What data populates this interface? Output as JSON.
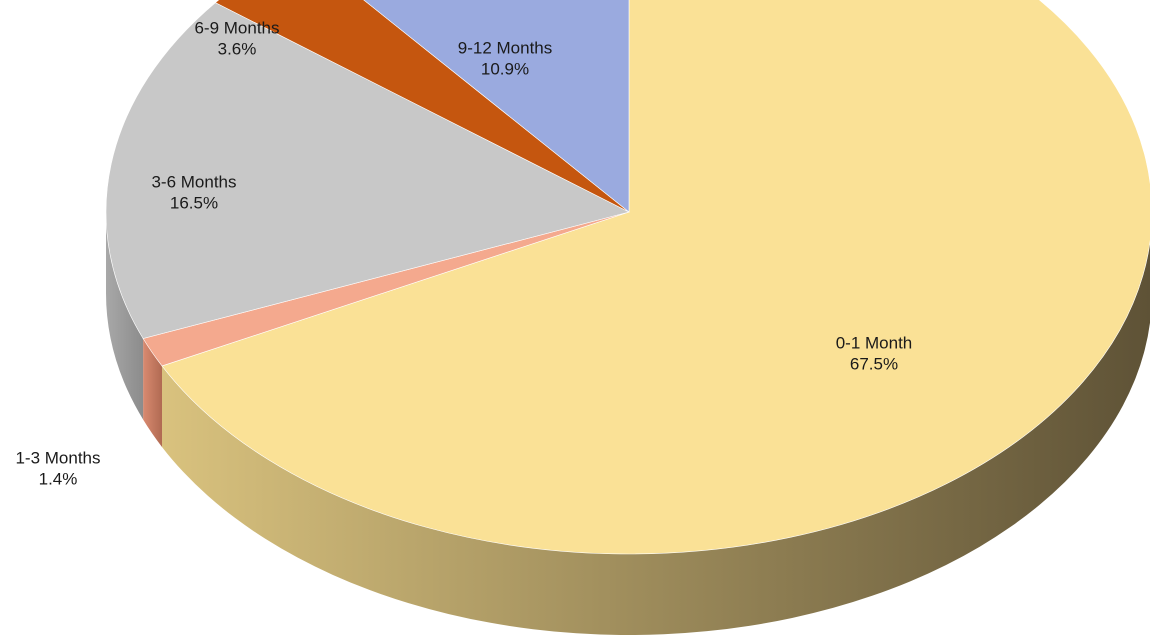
{
  "chart_data": {
    "type": "pie",
    "title": "",
    "style": "3d-tilted",
    "start_angle_deg": 0,
    "direction": "clockwise",
    "slices": [
      {
        "label": "0-1 Month",
        "percent_text": "67.5%",
        "value": 67.5,
        "color": "#FAE196",
        "side_color_light": "#D9C27E",
        "side_color_dark": "#5E5236"
      },
      {
        "label": "1-3 Months",
        "percent_text": "1.4%",
        "value": 1.4,
        "color": "#F4A98E",
        "side_color_light": "#D98A70",
        "side_color_dark": "#B06A52"
      },
      {
        "label": "3-6 Months",
        "percent_text": "16.5%",
        "value": 16.5,
        "color": "#C8C8C8",
        "side_color_light": "#A8A8A8",
        "side_color_dark": "#8C8C8C"
      },
      {
        "label": "6-9 Months",
        "percent_text": "3.6%",
        "value": 3.6,
        "color": "#C5560F",
        "side_color_light": "#A3460C",
        "side_color_dark": "#7E350A"
      },
      {
        "label": "9-12 Months",
        "percent_text": "10.9%",
        "value": 10.9,
        "color": "#9AAADF",
        "side_color_light": "#7D8CC0",
        "side_color_dark": "#66739F"
      }
    ]
  }
}
